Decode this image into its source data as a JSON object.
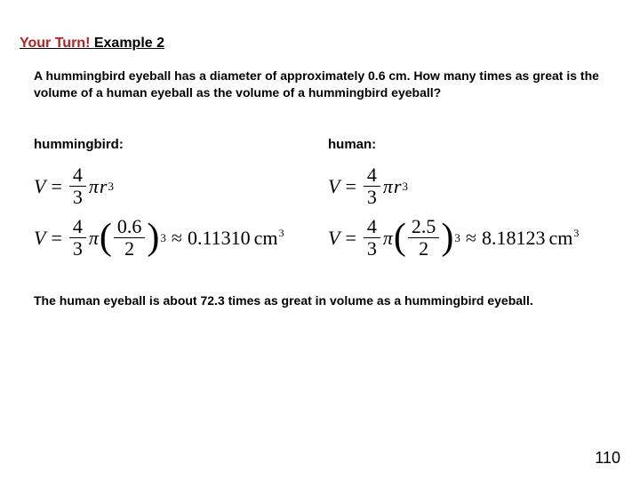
{
  "title": {
    "part1": "Your Turn! ",
    "part2": "Example 2"
  },
  "problem": "A hummingbird eyeball has a diameter of approximately 0.6 cm. How many times as great is the volume of a human eyeball as the volume of a hummingbird eyeball?",
  "columns": {
    "left": {
      "label": "hummingbird:",
      "formula1": {
        "var": "V",
        "frac_num": "4",
        "frac_den": "3",
        "pi": "π",
        "r": "r",
        "exp": "3"
      },
      "formula2": {
        "var": "V",
        "frac_num": "4",
        "frac_den": "3",
        "pi": "π",
        "inner_num": "0.6",
        "inner_den": "2",
        "exp": "3",
        "approx": "≈",
        "result": "0.11310",
        "unit": "cm",
        "unit_exp": "3"
      }
    },
    "right": {
      "label": "human:",
      "formula1": {
        "var": "V",
        "frac_num": "4",
        "frac_den": "3",
        "pi": "π",
        "r": "r",
        "exp": "3"
      },
      "formula2": {
        "var": "V",
        "frac_num": "4",
        "frac_den": "3",
        "pi": "π",
        "inner_num": "2.5",
        "inner_den": "2",
        "exp": "3",
        "approx": "≈",
        "result": "8.18123",
        "unit": "cm",
        "unit_exp": "3"
      }
    }
  },
  "answer": "The human eyeball is about 72.3 times as great in volume as a hummingbird eyeball.",
  "page_number": "110",
  "colors": {
    "title_red": "#b22222",
    "text": "#000000",
    "background": "#ffffff"
  }
}
